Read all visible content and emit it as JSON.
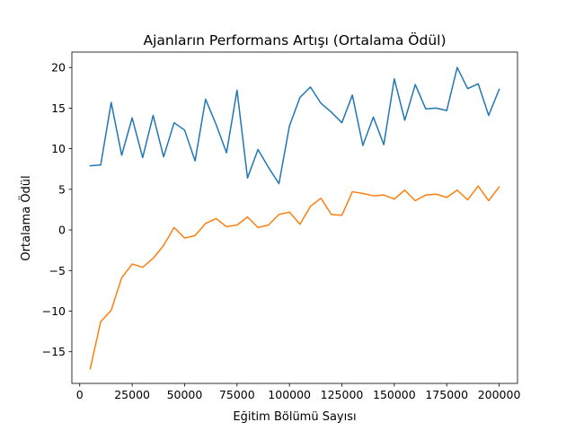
{
  "chart_data": {
    "type": "line",
    "title": "Ajanların Performans Artışı (Ortalama Ödül)",
    "xlabel": "Eğitim Bölümü Sayısı",
    "ylabel": "Ortalama Ödül",
    "xlim": [
      -3750,
      208750
    ],
    "ylim": [
      -18.9,
      21.9
    ],
    "x_ticks": [
      0,
      25000,
      50000,
      75000,
      100000,
      125000,
      150000,
      175000,
      200000
    ],
    "y_ticks": [
      -15,
      -10,
      -5,
      0,
      5,
      10,
      15,
      20
    ],
    "grid": false,
    "legend": "none",
    "x": [
      5000,
      10000,
      15000,
      20000,
      25000,
      30000,
      35000,
      40000,
      45000,
      50000,
      55000,
      60000,
      65000,
      70000,
      75000,
      80000,
      85000,
      90000,
      95000,
      100000,
      105000,
      110000,
      115000,
      120000,
      125000,
      130000,
      135000,
      140000,
      145000,
      150000,
      155000,
      160000,
      165000,
      170000,
      175000,
      180000,
      185000,
      190000,
      195000,
      200000
    ],
    "series": [
      {
        "color": "#1f77b4",
        "values": [
          7.9,
          8.0,
          15.7,
          9.2,
          13.8,
          8.9,
          14.1,
          9.0,
          13.2,
          12.3,
          8.5,
          16.1,
          13.0,
          9.5,
          17.2,
          6.4,
          9.9,
          7.7,
          5.7,
          12.8,
          16.3,
          17.6,
          15.6,
          14.5,
          13.2,
          16.6,
          10.4,
          13.9,
          10.5,
          18.6,
          13.5,
          17.9,
          14.9,
          15.0,
          14.7,
          20.0,
          17.4,
          18.0,
          14.1,
          17.3
        ]
      },
      {
        "color": "#ff7f0e",
        "values": [
          -17.1,
          -11.3,
          -9.9,
          -5.9,
          -4.2,
          -4.6,
          -3.5,
          -1.9,
          0.3,
          -1.0,
          -0.7,
          0.8,
          1.4,
          0.4,
          0.6,
          1.6,
          0.3,
          0.6,
          1.9,
          2.2,
          0.7,
          2.9,
          3.9,
          1.9,
          1.8,
          4.7,
          4.5,
          4.2,
          4.3,
          3.8,
          4.9,
          3.6,
          4.3,
          4.4,
          4.0,
          4.9,
          3.7,
          5.4,
          3.6,
          5.3
        ]
      }
    ]
  }
}
